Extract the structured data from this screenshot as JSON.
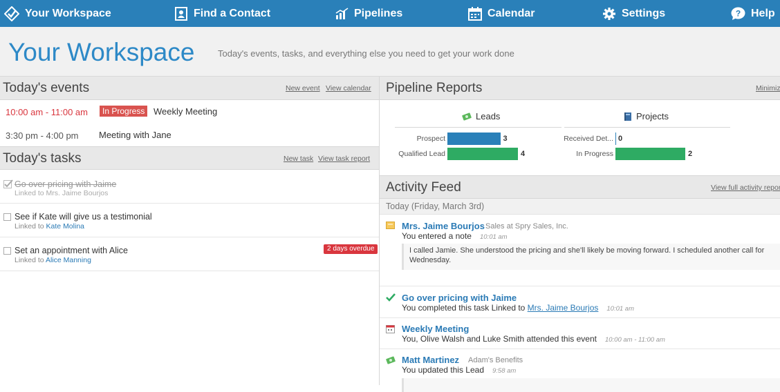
{
  "nav": {
    "workspace": "Your Workspace",
    "find_contact": "Find a Contact",
    "pipelines": "Pipelines",
    "calendar": "Calendar",
    "settings": "Settings",
    "help": "Help"
  },
  "hero": {
    "title": "Your Workspace",
    "subtitle": "Today's events, tasks, and everything else you need to get your work done"
  },
  "events": {
    "title": "Today's events",
    "new_event": "New event",
    "view_calendar": "View calendar",
    "items": [
      {
        "time": "10:00 am - 11:00 am",
        "badge": "In Progress",
        "name": "Weekly Meeting"
      },
      {
        "time": "3:30 pm - 4:00 pm",
        "name": "Meeting with Jane"
      }
    ]
  },
  "tasks": {
    "title": "Today's tasks",
    "new_task": "New task",
    "view_report": "View task report",
    "items": [
      {
        "title": "Go over pricing with Jaime",
        "linked_prefix": "Linked to ",
        "linked": "Mrs. Jaime Bourjos",
        "done": true
      },
      {
        "title": "See if Kate will give us a testimonial",
        "linked_prefix": "Linked to ",
        "linked": "Kate Molina",
        "done": false
      },
      {
        "title": "Set an appointment with Alice",
        "linked_prefix": "Linked to ",
        "linked": "Alice Manning",
        "done": false,
        "badge": "2 days overdue"
      }
    ]
  },
  "pipeline": {
    "title": "Pipeline Reports",
    "minimize": "Minimize",
    "leads": {
      "label": "Leads",
      "rows": [
        {
          "label": "Prospect",
          "value": 3
        },
        {
          "label": "Qualified Lead",
          "value": 4
        }
      ]
    },
    "projects": {
      "label": "Projects",
      "rows": [
        {
          "label": "Received Det...",
          "value": 0
        },
        {
          "label": "In Progress",
          "value": 2
        }
      ]
    }
  },
  "feed": {
    "title": "Activity Feed",
    "view_full": "View full activity report",
    "date": "Today (Friday, March 3rd)",
    "items": [
      {
        "name": "Mrs. Jaime Bourjos",
        "sub": "Sales at Spry Sales, Inc.",
        "line": "You entered a note",
        "time": "10:01 am",
        "note": "I called Jamie. She understood the pricing and she'll likely be moving forward. I scheduled another call for Wednesday."
      },
      {
        "name": "Go over pricing with Jaime",
        "line": "You completed this task Linked to ",
        "link": "Mrs. Jaime Bourjos",
        "time": "10:01 am"
      },
      {
        "name": "Weekly Meeting",
        "line": "You, Olive Walsh and Luke Smith attended this event",
        "time": "10:00 am - 11:00 am"
      },
      {
        "name": "Matt Martinez",
        "sub": "Adam's Benefits",
        "line": "You updated this Lead",
        "time": "9:58 am"
      }
    ]
  },
  "colors": {
    "nav": "#2a80b9",
    "accent_blue": "#2a7ab5",
    "bar_blue": "#2a80b9",
    "bar_green": "#2eab63",
    "overdue": "#d9363e",
    "in_progress": "#d9534f"
  }
}
